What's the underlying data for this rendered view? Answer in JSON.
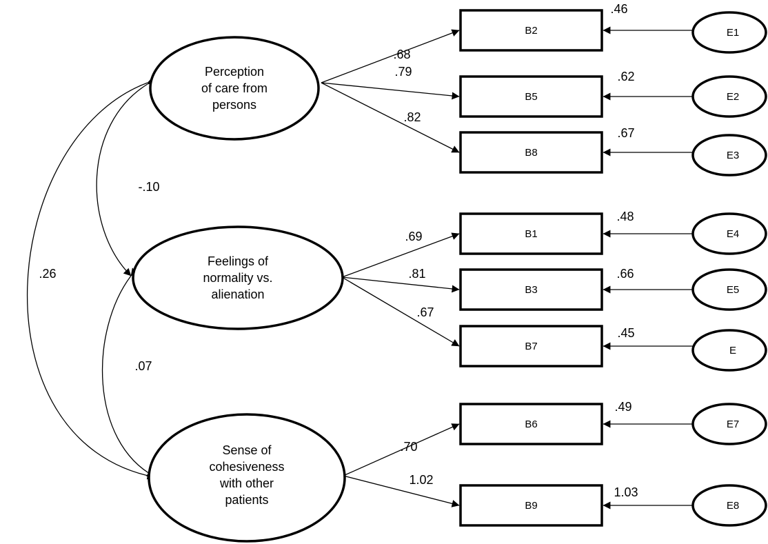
{
  "latents": [
    {
      "id": "L1",
      "lines": [
        "Perception",
        "of care from",
        "persons"
      ]
    },
    {
      "id": "L2",
      "lines": [
        "Feelings of",
        "normality vs.",
        "alienation"
      ]
    },
    {
      "id": "L3",
      "lines": [
        "Sense of",
        "cohesiveness",
        "with other",
        "patients"
      ]
    }
  ],
  "indicators": [
    {
      "id": "B2",
      "label": "B2",
      "loading": ".68",
      "residual": ".46",
      "error": "E1",
      "factor": "L1"
    },
    {
      "id": "B5",
      "label": "B5",
      "loading": ".79",
      "residual": ".62",
      "error": "E2",
      "factor": "L1"
    },
    {
      "id": "B8",
      "label": "B8",
      "loading": ".82",
      "residual": ".67",
      "error": "E3",
      "factor": "L1"
    },
    {
      "id": "B1",
      "label": "B1",
      "loading": ".69",
      "residual": ".48",
      "error": "E4",
      "factor": "L2"
    },
    {
      "id": "B3",
      "label": "B3",
      "loading": ".81",
      "residual": ".66",
      "error": "E5",
      "factor": "L2"
    },
    {
      "id": "B7",
      "label": "B7",
      "loading": ".67",
      "residual": ".45",
      "error": "E",
      "factor": "L2"
    },
    {
      "id": "B6",
      "label": "B6",
      "loading": ".70",
      "residual": ".49",
      "error": "E7",
      "factor": "L3"
    },
    {
      "id": "B9",
      "label": "B9",
      "loading": "1.02",
      "residual": "1.03",
      "error": "E8",
      "factor": "L3"
    }
  ],
  "correlations": [
    {
      "from": "L1",
      "to": "L2",
      "value": "-.10"
    },
    {
      "from": "L2",
      "to": "L3",
      "value": ".07"
    },
    {
      "from": "L1",
      "to": "L3",
      "value": ".26"
    }
  ]
}
